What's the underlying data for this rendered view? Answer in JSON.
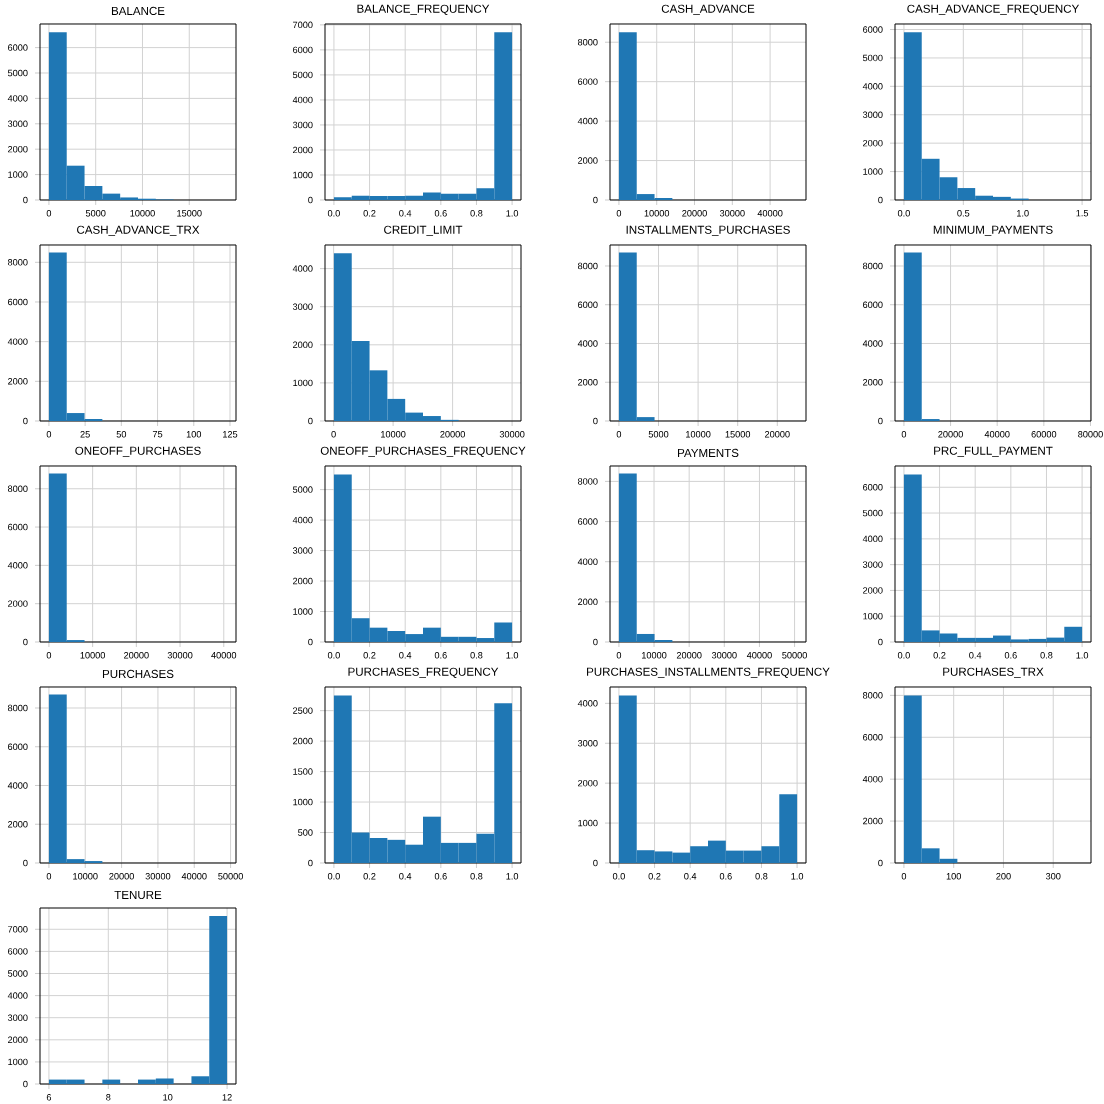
{
  "chart_data": [
    {
      "type": "histogram",
      "title": "BALANCE",
      "color": "#1f77b4",
      "grid": true,
      "bins": [
        0,
        1904,
        3809,
        5713,
        7617,
        9522,
        11426,
        13330,
        15234,
        17139,
        19043
      ],
      "values": [
        6600,
        1350,
        550,
        250,
        100,
        50,
        20,
        0,
        0,
        0
      ],
      "xlim": [
        -952,
        19995
      ],
      "ylim": [
        0,
        6930
      ],
      "xticks": [
        0,
        5000,
        10000,
        15000
      ],
      "yticks": [
        0,
        1000,
        2000,
        3000,
        4000,
        5000,
        6000
      ]
    },
    {
      "type": "histogram",
      "title": "BALANCE_FREQUENCY",
      "color": "#1f77b4",
      "grid": true,
      "bins": [
        0,
        0.1,
        0.2,
        0.3,
        0.4,
        0.5,
        0.6,
        0.7,
        0.8,
        0.9,
        1
      ],
      "values": [
        110,
        170,
        160,
        160,
        170,
        300,
        250,
        250,
        470,
        6700
      ],
      "xlim": [
        -0.05,
        1.05
      ],
      "ylim": [
        0,
        7035
      ],
      "xticks": [
        {
          "value": 0,
          "label": "0.0"
        },
        {
          "value": 0.2,
          "label": "0.2"
        },
        {
          "value": 0.4,
          "label": "0.4"
        },
        {
          "value": 0.6,
          "label": "0.6"
        },
        {
          "value": 0.8,
          "label": "0.8"
        },
        {
          "value": 1,
          "label": "1.0"
        }
      ],
      "yticks": [
        0,
        1000,
        2000,
        3000,
        4000,
        5000,
        6000,
        7000
      ]
    },
    {
      "type": "histogram",
      "title": "CASH_ADVANCE",
      "color": "#1f77b4",
      "grid": true,
      "bins": [
        0,
        4714,
        9427,
        14141,
        18855,
        23569,
        28282,
        32996,
        37710,
        42423,
        47137
      ],
      "values": [
        8500,
        300,
        100,
        0,
        0,
        0,
        0,
        0,
        0,
        0
      ],
      "xlim": [
        -2357,
        49494
      ],
      "ylim": [
        0,
        8925
      ],
      "xticks": [
        0,
        10000,
        20000,
        30000,
        40000
      ],
      "yticks": [
        0,
        2000,
        4000,
        6000,
        8000
      ]
    },
    {
      "type": "histogram",
      "title": "CASH_ADVANCE_FREQUENCY",
      "color": "#1f77b4",
      "grid": true,
      "bins": [
        0,
        0.15,
        0.3,
        0.45,
        0.6,
        0.75,
        0.9,
        1.05,
        1.2,
        1.35,
        1.5
      ],
      "values": [
        5900,
        1450,
        800,
        420,
        150,
        110,
        50,
        0,
        0,
        0
      ],
      "xlim": [
        -0.075,
        1.575
      ],
      "ylim": [
        0,
        6195
      ],
      "xticks": [
        {
          "value": 0,
          "label": "0.0"
        },
        {
          "value": 0.5,
          "label": "0.5"
        },
        {
          "value": 1,
          "label": "1.0"
        },
        {
          "value": 1.5,
          "label": "1.5"
        }
      ],
      "yticks": [
        0,
        1000,
        2000,
        3000,
        4000,
        5000,
        6000
      ]
    },
    {
      "type": "histogram",
      "title": "CASH_ADVANCE_TRX",
      "color": "#1f77b4",
      "grid": true,
      "bins": [
        0,
        12.3,
        24.6,
        36.9,
        49.2,
        61.5,
        73.8,
        86.1,
        98.4,
        110.7,
        123
      ],
      "values": [
        8500,
        400,
        100,
        0,
        0,
        0,
        0,
        0,
        0,
        0
      ],
      "xlim": [
        -6.15,
        129.15
      ],
      "ylim": [
        0,
        8873
      ],
      "xticks": [
        0,
        25,
        50,
        75,
        100,
        125
      ],
      "yticks": [
        0,
        2000,
        4000,
        6000,
        8000
      ]
    },
    {
      "type": "histogram",
      "title": "CREDIT_LIMIT",
      "color": "#1f77b4",
      "grid": true,
      "bins": [
        50,
        3045,
        6040,
        9035,
        12030,
        15025,
        18020,
        21015,
        24010,
        27005,
        30000
      ],
      "values": [
        4400,
        2100,
        1330,
        580,
        220,
        130,
        30,
        0,
        0,
        0
      ],
      "xlim": [
        -1447.5,
        31497.5
      ],
      "ylim": [
        0,
        4620
      ],
      "xticks": [
        0,
        10000,
        20000,
        30000
      ],
      "yticks": [
        0,
        1000,
        2000,
        3000,
        4000
      ]
    },
    {
      "type": "histogram",
      "title": "INSTALLMENTS_PURCHASES",
      "color": "#1f77b4",
      "grid": true,
      "bins": [
        0,
        2250,
        4500,
        6750,
        9000,
        11250,
        13500,
        15750,
        18000,
        20250,
        22500
      ],
      "values": [
        8700,
        200,
        0,
        0,
        0,
        0,
        0,
        0,
        0,
        0
      ],
      "xlim": [
        -1125,
        23625
      ],
      "ylim": [
        0,
        9083
      ],
      "xticks": [
        0,
        5000,
        10000,
        15000,
        20000
      ],
      "yticks": [
        0,
        2000,
        4000,
        6000,
        8000
      ]
    },
    {
      "type": "histogram",
      "title": "MINIMUM_PAYMENTS",
      "color": "#1f77b4",
      "grid": true,
      "bins": [
        0,
        7641,
        15281,
        22922,
        30562,
        38203,
        45844,
        53484,
        61125,
        68765,
        76406
      ],
      "values": [
        8700,
        100,
        0,
        0,
        0,
        0,
        0,
        0,
        0,
        0
      ],
      "xlim": [
        -3820,
        80226
      ],
      "ylim": [
        0,
        9083
      ],
      "xticks": [
        0,
        20000,
        40000,
        60000,
        80000
      ],
      "yticks": [
        0,
        2000,
        4000,
        6000,
        8000
      ]
    },
    {
      "type": "histogram",
      "title": "ONEOFF_PURCHASES",
      "color": "#1f77b4",
      "grid": true,
      "bins": [
        0,
        4076,
        8152,
        12228,
        16304,
        20381,
        24457,
        28533,
        32609,
        36685,
        40761
      ],
      "values": [
        8800,
        100,
        0,
        0,
        0,
        0,
        0,
        0,
        0,
        0
      ],
      "xlim": [
        -2038,
        42799
      ],
      "ylim": [
        0,
        9188
      ],
      "xticks": [
        0,
        10000,
        20000,
        30000,
        40000
      ],
      "yticks": [
        0,
        2000,
        4000,
        6000,
        8000
      ]
    },
    {
      "type": "histogram",
      "title": "ONEOFF_PURCHASES_FREQUENCY",
      "color": "#1f77b4",
      "grid": true,
      "bins": [
        0,
        0.1,
        0.2,
        0.3,
        0.4,
        0.5,
        0.6,
        0.7,
        0.8,
        0.9,
        1
      ],
      "values": [
        5500,
        780,
        470,
        360,
        260,
        470,
        170,
        170,
        130,
        640
      ],
      "xlim": [
        -0.05,
        1.05
      ],
      "ylim": [
        0,
        5775
      ],
      "xticks": [
        {
          "value": 0,
          "label": "0.0"
        },
        {
          "value": 0.2,
          "label": "0.2"
        },
        {
          "value": 0.4,
          "label": "0.4"
        },
        {
          "value": 0.6,
          "label": "0.6"
        },
        {
          "value": 0.8,
          "label": "0.8"
        },
        {
          "value": 1,
          "label": "1.0"
        }
      ],
      "yticks": [
        0,
        1000,
        2000,
        3000,
        4000,
        5000
      ]
    },
    {
      "type": "histogram",
      "title": "PAYMENTS",
      "color": "#1f77b4",
      "grid": true,
      "bins": [
        0,
        5072,
        10144,
        15216,
        20288,
        25361,
        30433,
        35505,
        40577,
        45649,
        50721
      ],
      "values": [
        8400,
        400,
        100,
        0,
        0,
        0,
        0,
        0,
        0,
        0
      ],
      "xlim": [
        -2536,
        53257
      ],
      "ylim": [
        0,
        8768
      ],
      "xticks": [
        0,
        10000,
        20000,
        30000,
        40000,
        50000
      ],
      "yticks": [
        0,
        2000,
        4000,
        6000,
        8000
      ]
    },
    {
      "type": "histogram",
      "title": "PRC_FULL_PAYMENT",
      "color": "#1f77b4",
      "grid": true,
      "bins": [
        0,
        0.1,
        0.2,
        0.3,
        0.4,
        0.5,
        0.6,
        0.7,
        0.8,
        0.9,
        1
      ],
      "values": [
        6500,
        450,
        330,
        160,
        160,
        250,
        100,
        120,
        170,
        590
      ],
      "xlim": [
        -0.05,
        1.05
      ],
      "ylim": [
        0,
        6825
      ],
      "xticks": [
        {
          "value": 0,
          "label": "0.0"
        },
        {
          "value": 0.2,
          "label": "0.2"
        },
        {
          "value": 0.4,
          "label": "0.4"
        },
        {
          "value": 0.6,
          "label": "0.6"
        },
        {
          "value": 0.8,
          "label": "0.8"
        },
        {
          "value": 1,
          "label": "1.0"
        }
      ],
      "yticks": [
        0,
        1000,
        2000,
        3000,
        4000,
        5000,
        6000
      ]
    },
    {
      "type": "histogram",
      "title": "PURCHASES",
      "color": "#1f77b4",
      "grid": true,
      "bins": [
        0,
        4904,
        9808,
        14712,
        19616,
        24520,
        29424,
        34328,
        39232,
        44136,
        49040
      ],
      "values": [
        8700,
        200,
        100,
        0,
        0,
        0,
        0,
        0,
        0,
        0
      ],
      "xlim": [
        -2452,
        51492
      ],
      "ylim": [
        0,
        9083
      ],
      "xticks": [
        0,
        10000,
        20000,
        30000,
        40000,
        50000
      ],
      "yticks": [
        0,
        2000,
        4000,
        6000,
        8000
      ]
    },
    {
      "type": "histogram",
      "title": "PURCHASES_FREQUENCY",
      "color": "#1f77b4",
      "grid": true,
      "bins": [
        0,
        0.1,
        0.2,
        0.3,
        0.4,
        0.5,
        0.6,
        0.7,
        0.8,
        0.9,
        1
      ],
      "values": [
        2750,
        500,
        410,
        380,
        300,
        760,
        330,
        330,
        480,
        2620
      ],
      "xlim": [
        -0.05,
        1.05
      ],
      "ylim": [
        0,
        2888
      ],
      "xticks": [
        {
          "value": 0,
          "label": "0.0"
        },
        {
          "value": 0.2,
          "label": "0.2"
        },
        {
          "value": 0.4,
          "label": "0.4"
        },
        {
          "value": 0.6,
          "label": "0.6"
        },
        {
          "value": 0.8,
          "label": "0.8"
        },
        {
          "value": 1,
          "label": "1.0"
        }
      ],
      "yticks": [
        0,
        500,
        1000,
        1500,
        2000,
        2500
      ]
    },
    {
      "type": "histogram",
      "title": "PURCHASES_INSTALLMENTS_FREQUENCY",
      "color": "#1f77b4",
      "grid": true,
      "bins": [
        0,
        0.1,
        0.2,
        0.3,
        0.4,
        0.5,
        0.6,
        0.7,
        0.8,
        0.9,
        1
      ],
      "values": [
        4200,
        320,
        290,
        260,
        420,
        560,
        310,
        310,
        420,
        1720
      ],
      "xlim": [
        -0.05,
        1.05
      ],
      "ylim": [
        0,
        4410
      ],
      "xticks": [
        {
          "value": 0,
          "label": "0.0"
        },
        {
          "value": 0.2,
          "label": "0.2"
        },
        {
          "value": 0.4,
          "label": "0.4"
        },
        {
          "value": 0.6,
          "label": "0.6"
        },
        {
          "value": 0.8,
          "label": "0.8"
        },
        {
          "value": 1,
          "label": "1.0"
        }
      ],
      "yticks": [
        0,
        1000,
        2000,
        3000,
        4000
      ]
    },
    {
      "type": "histogram",
      "title": "PURCHASES_TRX",
      "color": "#1f77b4",
      "grid": true,
      "bins": [
        0,
        35.8,
        71.6,
        107.4,
        143.2,
        179,
        214.8,
        250.6,
        286.4,
        322.2,
        358
      ],
      "values": [
        8000,
        700,
        200,
        0,
        0,
        0,
        0,
        0,
        0,
        0
      ],
      "xlim": [
        -17.9,
        375.9
      ],
      "ylim": [
        0,
        8400
      ],
      "xticks": [
        0,
        100,
        200,
        300
      ],
      "yticks": [
        0,
        2000,
        4000,
        6000,
        8000
      ]
    },
    {
      "type": "histogram",
      "title": "TENURE",
      "color": "#1f77b4",
      "grid": true,
      "bins": [
        6,
        6.6,
        7.2,
        7.8,
        8.4,
        9,
        9.6,
        10.2,
        10.8,
        11.4,
        12
      ],
      "values": [
        200,
        200,
        0,
        200,
        0,
        200,
        250,
        0,
        350,
        7600
      ],
      "xlim": [
        5.7,
        12.3
      ],
      "ylim": [
        0,
        7963
      ],
      "xticks": [
        6,
        8,
        10,
        12
      ],
      "yticks": [
        0,
        1000,
        2000,
        3000,
        4000,
        5000,
        6000,
        7000
      ]
    }
  ]
}
